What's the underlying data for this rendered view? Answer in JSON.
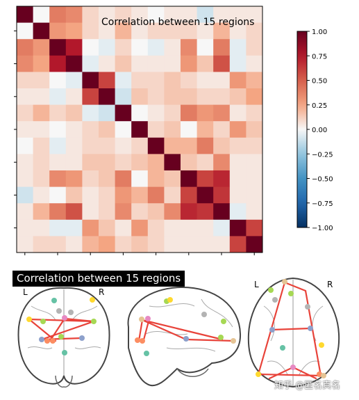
{
  "chart_data": [
    {
      "type": "heatmap",
      "title": "Correlation between 15 regions",
      "n": 15,
      "colormap": "RdBu_r",
      "vmin": -1.0,
      "vmax": 1.0,
      "values": [
        [
          1.0,
          0.0,
          0.4,
          0.35,
          0.1,
          0.05,
          0.1,
          0.05,
          0.0,
          0.05,
          0.05,
          -0.1,
          0.05,
          0.05,
          0.05
        ],
        [
          0.0,
          1.0,
          0.3,
          0.25,
          0.1,
          0.05,
          0.2,
          0.05,
          0.1,
          0.1,
          0.1,
          0.05,
          0.2,
          0.05,
          0.1
        ],
        [
          0.4,
          0.3,
          1.0,
          0.75,
          0.0,
          -0.05,
          0.1,
          0.0,
          -0.05,
          0.05,
          0.35,
          0.0,
          0.4,
          -0.05,
          0.1
        ],
        [
          0.35,
          0.25,
          0.75,
          1.0,
          -0.05,
          0.05,
          0.15,
          0.05,
          0.05,
          0.05,
          0.3,
          0.15,
          0.55,
          -0.05,
          0.05
        ],
        [
          0.1,
          0.1,
          0.0,
          -0.05,
          1.0,
          0.6,
          -0.05,
          0.1,
          0.1,
          0.15,
          0.1,
          0.05,
          0.05,
          0.3,
          0.2
        ],
        [
          0.05,
          0.05,
          -0.05,
          0.05,
          0.6,
          1.0,
          -0.1,
          0.15,
          0.1,
          0.15,
          0.15,
          0.1,
          0.1,
          0.15,
          0.25
        ],
        [
          0.1,
          0.2,
          0.1,
          0.15,
          -0.05,
          -0.1,
          1.0,
          0.0,
          0.05,
          0.1,
          0.4,
          0.3,
          0.35,
          0.05,
          0.1
        ],
        [
          0.05,
          0.05,
          0.0,
          0.05,
          0.1,
          0.15,
          0.0,
          1.0,
          0.1,
          0.15,
          0.0,
          0.2,
          0.1,
          0.3,
          0.15
        ],
        [
          0.0,
          0.1,
          -0.05,
          0.05,
          0.1,
          0.1,
          0.05,
          0.1,
          1.0,
          0.2,
          0.2,
          0.4,
          0.15,
          0.1,
          0.1
        ],
        [
          0.05,
          0.1,
          0.05,
          0.05,
          0.15,
          0.15,
          0.1,
          0.15,
          0.2,
          1.0,
          0.15,
          0.1,
          0.35,
          0.05,
          0.05
        ],
        [
          0.05,
          0.1,
          0.35,
          0.3,
          0.1,
          0.15,
          0.4,
          0.0,
          0.2,
          0.15,
          1.0,
          0.6,
          0.7,
          0.05,
          0.05
        ],
        [
          -0.1,
          0.05,
          0.0,
          0.15,
          0.05,
          0.1,
          0.3,
          0.2,
          0.4,
          0.1,
          0.6,
          1.0,
          0.65,
          0.05,
          0.05
        ],
        [
          0.05,
          0.2,
          0.4,
          0.55,
          0.05,
          0.1,
          0.35,
          0.1,
          0.15,
          0.35,
          0.7,
          0.65,
          1.0,
          -0.05,
          0.05
        ],
        [
          0.05,
          0.05,
          -0.05,
          -0.05,
          0.3,
          0.15,
          0.05,
          0.3,
          0.1,
          0.05,
          0.05,
          0.05,
          -0.05,
          1.0,
          0.6
        ],
        [
          0.05,
          0.1,
          0.1,
          0.05,
          0.2,
          0.25,
          0.1,
          0.15,
          0.1,
          0.05,
          0.05,
          0.05,
          0.05,
          0.6,
          1.0
        ]
      ],
      "colorbar_ticks": [
        "1.00",
        "0.75",
        "0.50",
        "0.25",
        "0.00",
        "−0.25",
        "−0.50",
        "−0.75",
        "−1.00"
      ]
    }
  ],
  "connectome": {
    "title": "Correlation between 15 regions",
    "views": [
      {
        "name": "coronal",
        "left_label": "L",
        "right_label": "R"
      },
      {
        "name": "sagittal"
      },
      {
        "name": "axial",
        "left_label": "L",
        "right_label": "R"
      }
    ],
    "node_colors": [
      "#66c2a5",
      "#fc8d62",
      "#8da0cb",
      "#e78ac3",
      "#a6d854",
      "#ffd92f",
      "#e5c494",
      "#b3b3b3"
    ],
    "edge_color": "#e8433a"
  },
  "watermark": "知乎 @匿名真名"
}
